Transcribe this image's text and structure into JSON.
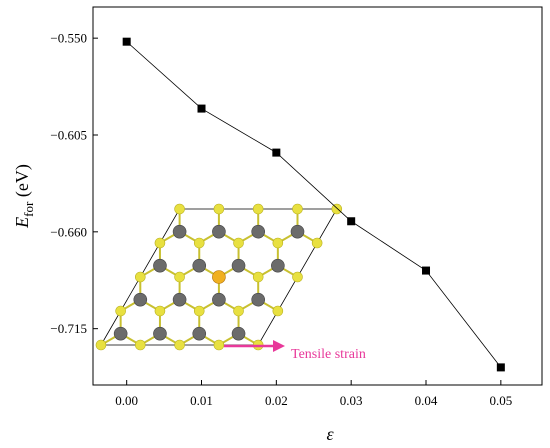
{
  "chart_data": {
    "type": "line",
    "title": "",
    "xlabel": "ε",
    "ylabel": {
      "main": "E",
      "sub": "for",
      "unit": " (eV)"
    },
    "x": [
      0.0,
      0.01,
      0.02,
      0.03,
      0.04,
      0.05
    ],
    "series": [
      {
        "values": [
          -0.552,
          -0.59,
          -0.615,
          -0.654,
          -0.682,
          -0.737
        ],
        "color": "#000000"
      }
    ],
    "xlim": [
      -0.0045,
      0.0555
    ],
    "ylim": [
      -0.747,
      -0.5323
    ],
    "xticks": [
      "0.00",
      "0.01",
      "0.02",
      "0.03",
      "0.04",
      "0.05"
    ],
    "xtick_values": [
      0.0,
      0.01,
      0.02,
      0.03,
      0.04,
      0.05
    ],
    "yticks": [
      "−0.550",
      "−0.605",
      "−0.660",
      "−0.715"
    ],
    "ytick_values": [
      -0.55,
      -0.605,
      -0.66,
      -0.715
    ],
    "grid": false,
    "annotation": {
      "text": "Tensile strain",
      "color": "#e8389a"
    },
    "inset": {
      "description_icon": "hexagonal-lattice-icon",
      "colors": {
        "metal": "#6b6b6b",
        "chalcogen": "#e8e040",
        "highlight": "#f0b020",
        "cell": "#000000"
      }
    }
  }
}
